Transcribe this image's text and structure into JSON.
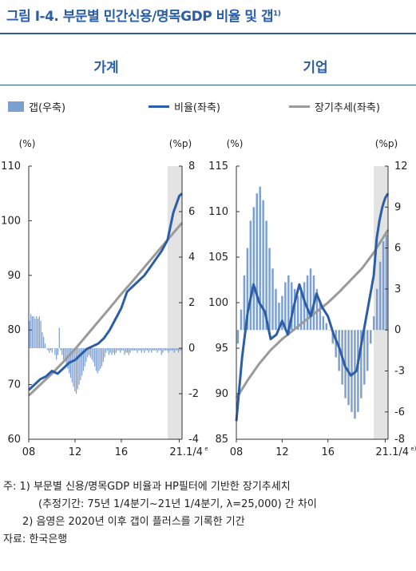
{
  "figure": {
    "title": "그림 Ⅰ-4. 부문별 민간신용/명목GDP 비율 및 갭",
    "title_sup": "1)",
    "legend": [
      {
        "label": "갭(우축)",
        "kind": "bar",
        "color": "#7c9fd1"
      },
      {
        "label": "비율(좌축)",
        "kind": "line",
        "color": "#2b5ea7"
      },
      {
        "label": "장기추세(좌축)",
        "kind": "line",
        "color": "#9a9a9a"
      }
    ],
    "notes": [
      "주: 1) 부문별 신용/명목GDP 비율과 HP필터에 기반한 장기추세치",
      "(추정기간: 75년 1/4분기~21년 1/4분기, λ=25,000) 간 차이",
      "2) 음영은 2020년 이후 갭이 플러스를 기록한 기간",
      "자료: 한국은행"
    ]
  },
  "chart_data": [
    {
      "type": "bar+line",
      "panel_title": "가계",
      "left_unit": "(%)",
      "right_unit": "(%p)",
      "left_ylim": [
        60,
        110
      ],
      "left_ticks": [
        60,
        70,
        80,
        90,
        100,
        110
      ],
      "right_ylim": [
        -4,
        8
      ],
      "right_ticks": [
        -4,
        -2,
        0,
        2,
        4,
        6,
        8
      ],
      "x_ticks": [
        "08",
        "12",
        "16",
        "21.1/4"
      ],
      "x_tick_sup": "e)",
      "x_tick_years": [
        2008,
        2012,
        2016,
        2021
      ],
      "x_range": [
        2008.0,
        2021.25
      ],
      "shade": [
        2020.0,
        2021.25
      ],
      "series": [
        {
          "name": "갭(우축)",
          "kind": "bar",
          "axis": "right",
          "values": [
            1.2,
            1.5,
            1.4,
            1.4,
            1.3,
            1.4,
            1.3,
            1.4,
            1.2,
            0.7,
            0.5,
            0.2,
            0.0,
            -0.1,
            -0.2,
            -0.1,
            -0.2,
            0.0,
            -0.3,
            -0.5,
            -0.3,
            0.9,
            -0.1,
            -0.3,
            -0.5,
            -0.5,
            -0.7,
            -0.9,
            -1.1,
            -1.3,
            -1.5,
            -1.7,
            -1.9,
            -2.0,
            -1.8,
            -1.6,
            -1.4,
            -1.2,
            -1.0,
            -0.8,
            -0.6,
            -0.4,
            -0.3,
            -0.4,
            -0.5,
            -0.6,
            -0.8,
            -1.0,
            -1.1,
            -1.0,
            -0.9,
            -0.8,
            -0.6,
            -0.4,
            -0.2,
            -0.1,
            -0.3,
            -0.2,
            -0.3,
            -0.2,
            -0.3,
            -0.2,
            -0.1,
            -0.1,
            -0.2,
            -0.1,
            -0.1,
            -0.3,
            -0.2,
            -0.2,
            -0.3,
            -0.2,
            -0.1,
            -0.1,
            -0.1,
            -0.1,
            -0.2,
            -0.1,
            -0.1,
            -0.2,
            -0.1,
            -0.2,
            -0.1,
            -0.1,
            -0.2,
            -0.1,
            -0.2,
            -0.1,
            -0.1,
            -0.1,
            -0.2,
            -0.1,
            -0.1,
            -0.3,
            -0.2,
            -0.1,
            -0.1,
            -0.1,
            -0.2,
            -0.1,
            -0.1,
            -0.1,
            -0.2,
            -0.1,
            -0.1,
            -0.2,
            -0.1,
            -0.1
          ]
        },
        {
          "name": "비율(좌축)",
          "kind": "line",
          "axis": "left",
          "points": [
            [
              2008.0,
              69.0
            ],
            [
              2008.5,
              70.0
            ],
            [
              2009.0,
              71.0
            ],
            [
              2009.5,
              71.5
            ],
            [
              2010.0,
              72.5
            ],
            [
              2010.5,
              72.0
            ],
            [
              2011.0,
              73.0
            ],
            [
              2011.5,
              74.0
            ],
            [
              2012.0,
              74.5
            ],
            [
              2012.5,
              75.5
            ],
            [
              2013.0,
              76.5
            ],
            [
              2013.5,
              77.0
            ],
            [
              2014.0,
              77.5
            ],
            [
              2014.5,
              78.5
            ],
            [
              2015.0,
              80.0
            ],
            [
              2015.5,
              82.0
            ],
            [
              2016.0,
              84.0
            ],
            [
              2016.5,
              87.0
            ],
            [
              2017.0,
              88.0
            ],
            [
              2017.5,
              89.0
            ],
            [
              2018.0,
              90.0
            ],
            [
              2018.5,
              91.5
            ],
            [
              2019.0,
              93.0
            ],
            [
              2019.5,
              94.5
            ],
            [
              2020.0,
              96.5
            ],
            [
              2020.25,
              99.0
            ],
            [
              2020.5,
              101.5
            ],
            [
              2020.75,
              103.0
            ],
            [
              2021.0,
              104.5
            ],
            [
              2021.25,
              105.0
            ]
          ]
        },
        {
          "name": "장기추세(좌축)",
          "kind": "line",
          "axis": "left",
          "points": [
            [
              2008.0,
              68.0
            ],
            [
              2009.0,
              70.0
            ],
            [
              2010.0,
              72.0
            ],
            [
              2011.0,
              74.2
            ],
            [
              2012.0,
              76.5
            ],
            [
              2013.0,
              79.0
            ],
            [
              2014.0,
              81.5
            ],
            [
              2015.0,
              84.0
            ],
            [
              2016.0,
              86.6
            ],
            [
              2017.0,
              89.0
            ],
            [
              2018.0,
              91.5
            ],
            [
              2019.0,
              94.0
            ],
            [
              2020.0,
              96.5
            ],
            [
              2021.0,
              99.0
            ],
            [
              2021.25,
              99.6
            ]
          ]
        }
      ]
    },
    {
      "type": "bar+line",
      "panel_title": "기업",
      "left_unit": "(%)",
      "right_unit": "(%p)",
      "left_ylim": [
        85,
        115
      ],
      "left_ticks": [
        85,
        90,
        95,
        100,
        105,
        110,
        115
      ],
      "right_ylim": [
        -8,
        12
      ],
      "right_ticks": [
        -8,
        -6,
        -3,
        0,
        3,
        6,
        9,
        12
      ],
      "x_ticks": [
        "08",
        "12",
        "16",
        "21.1/4"
      ],
      "x_tick_sup": "e)",
      "x_tick_years": [
        2008,
        2012,
        2016,
        2021
      ],
      "x_range": [
        2008.0,
        2021.25
      ],
      "shade": [
        2020.0,
        2021.25
      ],
      "series": [
        {
          "name": "갭(우축)",
          "kind": "bar",
          "axis": "right",
          "values": [
            -1.0,
            1.5,
            4.0,
            6.0,
            8.0,
            9.0,
            10.0,
            10.5,
            9.5,
            8.0,
            6.0,
            4.5,
            3.0,
            2.0,
            2.5,
            3.5,
            4.0,
            3.5,
            3.0,
            2.5,
            3.0,
            3.5,
            4.0,
            4.5,
            4.0,
            3.0,
            2.0,
            1.0,
            0.5,
            0.0,
            -1.0,
            -2.0,
            -3.0,
            -4.0,
            -5.0,
            -5.5,
            -6.0,
            -6.5,
            -6.0,
            -5.0,
            -4.0,
            -3.0,
            -1.0,
            1.0,
            3.0,
            5.0,
            6.5,
            7.0
          ]
        },
        {
          "name": "비율(좌축)",
          "kind": "line",
          "axis": "left",
          "points": [
            [
              2008.0,
              87.0
            ],
            [
              2008.5,
              94.0
            ],
            [
              2009.0,
              99.0
            ],
            [
              2009.5,
              102.0
            ],
            [
              2010.0,
              100.0
            ],
            [
              2010.5,
              99.0
            ],
            [
              2011.0,
              96.0
            ],
            [
              2011.5,
              96.5
            ],
            [
              2012.0,
              98.0
            ],
            [
              2012.5,
              96.5
            ],
            [
              2013.0,
              99.5
            ],
            [
              2013.5,
              102.0
            ],
            [
              2014.0,
              100.0
            ],
            [
              2014.5,
              98.5
            ],
            [
              2015.0,
              101.0
            ],
            [
              2015.5,
              99.5
            ],
            [
              2016.0,
              98.5
            ],
            [
              2016.5,
              96.5
            ],
            [
              2017.0,
              95.0
            ],
            [
              2017.5,
              93.0
            ],
            [
              2018.0,
              92.0
            ],
            [
              2018.5,
              92.5
            ],
            [
              2019.0,
              96.0
            ],
            [
              2019.5,
              99.5
            ],
            [
              2020.0,
              103.0
            ],
            [
              2020.25,
              107.0
            ],
            [
              2020.5,
              109.0
            ],
            [
              2020.75,
              110.5
            ],
            [
              2021.0,
              111.5
            ],
            [
              2021.25,
              112.0
            ]
          ]
        },
        {
          "name": "장기추세(좌축)",
          "kind": "line",
          "axis": "left",
          "points": [
            [
              2008.0,
              89.5
            ],
            [
              2009.0,
              91.5
            ],
            [
              2010.0,
              93.3
            ],
            [
              2011.0,
              94.8
            ],
            [
              2012.0,
              96.0
            ],
            [
              2013.0,
              97.0
            ],
            [
              2014.0,
              98.0
            ],
            [
              2015.0,
              99.0
            ],
            [
              2016.0,
              100.0
            ],
            [
              2017.0,
              101.2
            ],
            [
              2018.0,
              102.5
            ],
            [
              2019.0,
              103.8
            ],
            [
              2020.0,
              105.5
            ],
            [
              2021.0,
              107.5
            ],
            [
              2021.25,
              108.0
            ]
          ]
        }
      ]
    }
  ]
}
